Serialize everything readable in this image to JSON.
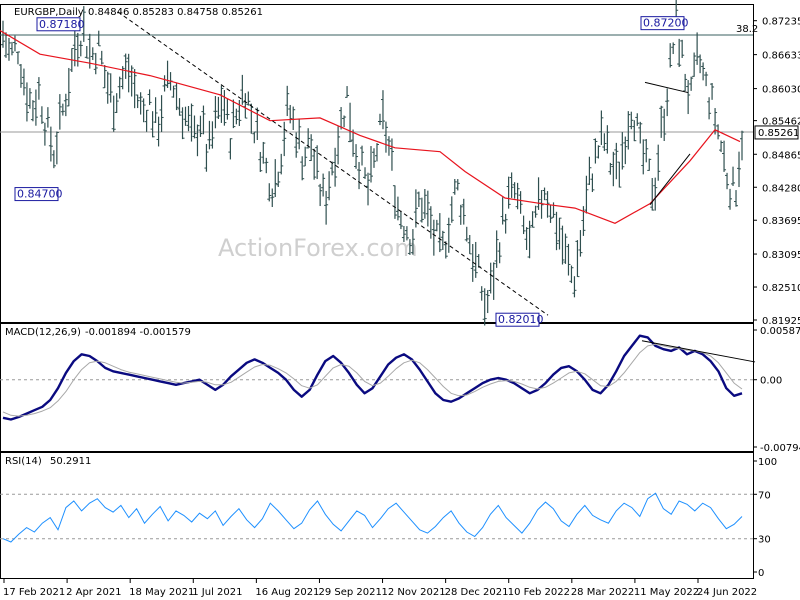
{
  "header": {
    "symbol": "EURGBP,Daily",
    "ohlc": "0.84846 0.85283 0.84758 0.85261",
    "macd_label": "MACD(12,26,9)",
    "macd_values": "-0.001894 -0.001579",
    "rsi_label": "RSI(14)",
    "rsi_value": "50.2911"
  },
  "watermark": "ActionForex.com",
  "colors": {
    "price_bars": "#2f4f4f",
    "moving_average": "#e8141e",
    "macd_line": "#0a0a80",
    "signal_line": "#a8a8a8",
    "rsi_line": "#1e90ff",
    "label_border": "#1a1aa0"
  },
  "chart_data": [
    {
      "type": "ohlc",
      "panel": "price",
      "ylim": [
        0.81925,
        0.8746
      ],
      "yticks": [
        "0.87235",
        "0.86633",
        "0.86030",
        "0.85462",
        "0.84865",
        "0.84280",
        "0.83695",
        "0.83095",
        "0.82510",
        "0.81925"
      ],
      "x_labels": [
        "17 Feb 2021",
        "2 Apr 2021",
        "18 May 2021",
        "1 Jul 2021",
        "16 Aug 2021",
        "29 Sep 2021",
        "12 Nov 2021",
        "28 Dec 2021",
        "10 Feb 2022",
        "28 Mar 2022",
        "11 May 2022",
        "24 Jun 2022"
      ],
      "current_price": "0.85261",
      "fib_level": {
        "label": "38.2",
        "value": 0.8698
      },
      "annotations": [
        {
          "text": "0.87180",
          "value": 0.8718
        },
        {
          "text": "0.84700",
          "value": 0.847
        },
        {
          "text": "0.82010",
          "value": 0.8201
        },
        {
          "text": "0.87200",
          "value": 0.872
        }
      ],
      "close_path": [
        0.87,
        0.866,
        0.868,
        0.861,
        0.857,
        0.86,
        0.853,
        0.849,
        0.855,
        0.862,
        0.869,
        0.871,
        0.866,
        0.868,
        0.862,
        0.858,
        0.861,
        0.864,
        0.86,
        0.856,
        0.858,
        0.853,
        0.859,
        0.862,
        0.858,
        0.855,
        0.851,
        0.855,
        0.848,
        0.854,
        0.859,
        0.852,
        0.856,
        0.861,
        0.855,
        0.851,
        0.846,
        0.843,
        0.849,
        0.857,
        0.853,
        0.848,
        0.851,
        0.844,
        0.84,
        0.847,
        0.853,
        0.859,
        0.851,
        0.846,
        0.842,
        0.849,
        0.855,
        0.848,
        0.839,
        0.836,
        0.834,
        0.841,
        0.838,
        0.834,
        0.831,
        0.837,
        0.843,
        0.838,
        0.832,
        0.827,
        0.821,
        0.827,
        0.835,
        0.84,
        0.842,
        0.836,
        0.832,
        0.838,
        0.843,
        0.839,
        0.835,
        0.83,
        0.826,
        0.834,
        0.843,
        0.848,
        0.852,
        0.847,
        0.845,
        0.852,
        0.858,
        0.85,
        0.846,
        0.842,
        0.853,
        0.862,
        0.872,
        0.864,
        0.858,
        0.866,
        0.861,
        0.857,
        0.851,
        0.845,
        0.841,
        0.8526
      ],
      "moving_average": [
        [
          0,
          0.8706
        ],
        [
          40,
          0.8664
        ],
        [
          90,
          0.8648
        ],
        [
          150,
          0.8626
        ],
        [
          220,
          0.8592
        ],
        [
          270,
          0.8546
        ],
        [
          320,
          0.8551
        ],
        [
          360,
          0.852
        ],
        [
          395,
          0.8498
        ],
        [
          440,
          0.8491
        ],
        [
          465,
          0.8456
        ],
        [
          505,
          0.8409
        ],
        [
          545,
          0.8398
        ],
        [
          575,
          0.8391
        ],
        [
          615,
          0.8364
        ],
        [
          650,
          0.8399
        ],
        [
          690,
          0.8475
        ],
        [
          715,
          0.853
        ],
        [
          740,
          0.8509
        ]
      ],
      "trendlines": [
        {
          "from": [
            118,
            0.8739
          ],
          "to": [
            548,
            0.8201
          ],
          "style": "dashed"
        },
        {
          "from": [
            645,
            0.8614
          ],
          "to": [
            688,
            0.8596
          ],
          "style": "solid"
        },
        {
          "from": [
            650,
            0.8397
          ],
          "to": [
            690,
            0.8487
          ],
          "style": "solid"
        }
      ]
    },
    {
      "type": "line",
      "panel": "macd",
      "ylim": [
        -0.007945,
        0.005872
      ],
      "yticks": [
        "0.005872",
        "0.00",
        "-0.007945"
      ],
      "series": [
        {
          "name": "MACD",
          "values": [
            -0.0045,
            -0.0047,
            -0.0044,
            -0.004,
            -0.0036,
            -0.0032,
            -0.0024,
            -0.001,
            0.0008,
            0.0022,
            0.003,
            0.0028,
            0.0022,
            0.0014,
            0.001,
            0.0008,
            0.0006,
            0.0004,
            0.0002,
            0.0,
            -0.0002,
            -0.0004,
            -0.0006,
            -0.0004,
            -0.0002,
            0.0,
            -0.0006,
            -0.0012,
            -0.0006,
            0.0004,
            0.0012,
            0.002,
            0.0024,
            0.002,
            0.0014,
            0.0008,
            0.0,
            -0.0012,
            -0.002,
            -0.0012,
            0.0006,
            0.0022,
            0.0028,
            0.002,
            0.0008,
            -0.0006,
            -0.0016,
            -0.001,
            0.0004,
            0.0018,
            0.0026,
            0.003,
            0.0024,
            0.0012,
            -0.0002,
            -0.0016,
            -0.0024,
            -0.0026,
            -0.0022,
            -0.0016,
            -0.001,
            -0.0004,
            0.0,
            0.0002,
            0.0,
            -0.0004,
            -0.001,
            -0.0016,
            -0.0012,
            -0.0004,
            0.0006,
            0.0014,
            0.0016,
            0.001,
            0.0,
            -0.0012,
            -0.0016,
            -0.0006,
            0.001,
            0.0028,
            0.004,
            0.0052,
            0.005,
            0.004,
            0.0036,
            0.0034,
            0.0038,
            0.003,
            0.0034,
            0.003,
            0.0022,
            0.001,
            -0.001,
            -0.0019,
            -0.0016
          ]
        },
        {
          "name": "Signal",
          "values": [
            -0.0038,
            -0.0042,
            -0.0043,
            -0.0042,
            -0.004,
            -0.0037,
            -0.0033,
            -0.0025,
            -0.0014,
            0.0,
            0.0012,
            0.002,
            0.0022,
            0.002,
            0.0016,
            0.0012,
            0.0009,
            0.0007,
            0.0005,
            0.0003,
            0.0001,
            -0.0001,
            -0.0003,
            -0.0004,
            -0.0003,
            -0.0002,
            -0.0003,
            -0.0006,
            -0.0006,
            -0.0003,
            0.0003,
            0.0009,
            0.0015,
            0.0018,
            0.0017,
            0.0013,
            0.0008,
            0.0001,
            -0.0007,
            -0.001,
            -0.0006,
            0.0004,
            0.0014,
            0.0018,
            0.0016,
            0.0008,
            -0.0002,
            -0.0007,
            -0.0004,
            0.0004,
            0.0013,
            0.002,
            0.0023,
            0.002,
            0.0012,
            0.0002,
            -0.0008,
            -0.0016,
            -0.0019,
            -0.0018,
            -0.0014,
            -0.0009,
            -0.0005,
            -0.0002,
            -0.0001,
            -0.0002,
            -0.0005,
            -0.0009,
            -0.0011,
            -0.0009,
            -0.0004,
            0.0002,
            0.0008,
            0.001,
            0.0007,
            0.0,
            -0.0007,
            -0.0008,
            -0.0002,
            0.0008,
            0.002,
            0.0032,
            0.004,
            0.0042,
            0.004,
            0.0038,
            0.0037,
            0.0035,
            0.0034,
            0.0032,
            0.0028,
            0.002,
            0.0008,
            -0.0004,
            -0.0011
          ]
        }
      ],
      "trendline": {
        "from": [
          642,
          0.0046
        ],
        "to": [
          755,
          0.0021
        ]
      }
    },
    {
      "type": "line",
      "panel": "rsi",
      "ylim": [
        0,
        100
      ],
      "yticks": [
        "100",
        "70",
        "30",
        "0"
      ],
      "reference_levels": [
        70,
        30
      ],
      "series": [
        {
          "name": "RSI(14)",
          "values": [
            30,
            27,
            34,
            40,
            36,
            44,
            49,
            38,
            58,
            64,
            55,
            62,
            66,
            58,
            54,
            60,
            49,
            57,
            44,
            52,
            59,
            46,
            55,
            51,
            45,
            53,
            48,
            55,
            42,
            50,
            57,
            47,
            40,
            48,
            62,
            55,
            47,
            39,
            44,
            56,
            64,
            52,
            43,
            37,
            46,
            55,
            51,
            40,
            48,
            57,
            62,
            54,
            46,
            38,
            35,
            41,
            49,
            55,
            44,
            36,
            32,
            40,
            52,
            60,
            49,
            42,
            35,
            44,
            56,
            63,
            57,
            46,
            41,
            52,
            60,
            51,
            47,
            44,
            55,
            62,
            58,
            50,
            66,
            71,
            57,
            52,
            64,
            61,
            55,
            62,
            58,
            48,
            39,
            43,
            50
          ]
        }
      ]
    }
  ]
}
